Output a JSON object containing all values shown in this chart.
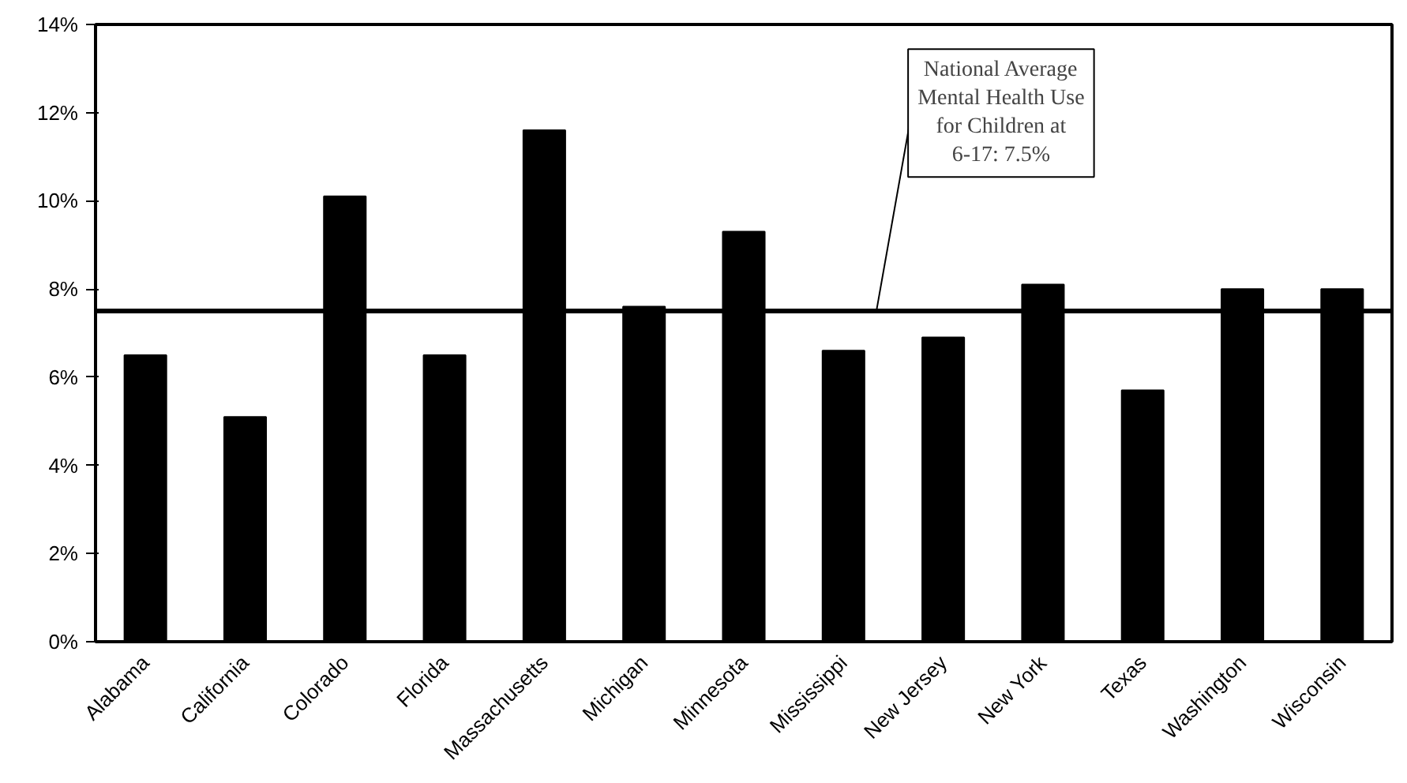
{
  "chart_data": {
    "type": "bar",
    "categories": [
      "Alabama",
      "California",
      "Colorado",
      "Florida",
      "Massachusetts",
      "Michigan",
      "Minnesota",
      "Mississippi",
      "New Jersey",
      "New York",
      "Texas",
      "Washington",
      "Wisconsin"
    ],
    "values": [
      6.5,
      5.1,
      10.1,
      6.5,
      11.6,
      7.6,
      9.3,
      6.6,
      6.9,
      8.1,
      5.7,
      8.0,
      8.0
    ],
    "color": "#000000",
    "ylim": [
      0,
      14
    ],
    "yticks": [
      {
        "value": 0,
        "label": "0%"
      },
      {
        "value": 2,
        "label": "2%"
      },
      {
        "value": 4,
        "label": "4%"
      },
      {
        "value": 6,
        "label": "6%"
      },
      {
        "value": 8,
        "label": "8%"
      },
      {
        "value": 10,
        "label": "10%"
      },
      {
        "value": 12,
        "label": "12%"
      },
      {
        "value": 14,
        "label": "14%"
      }
    ],
    "ref_lines": [
      {
        "axis": "y",
        "value": 7.5,
        "label": "National Average Mental Health Use for Children at 6-17: 7.5%",
        "color": "#000000",
        "line_style": "solid"
      }
    ],
    "grid": false
  }
}
